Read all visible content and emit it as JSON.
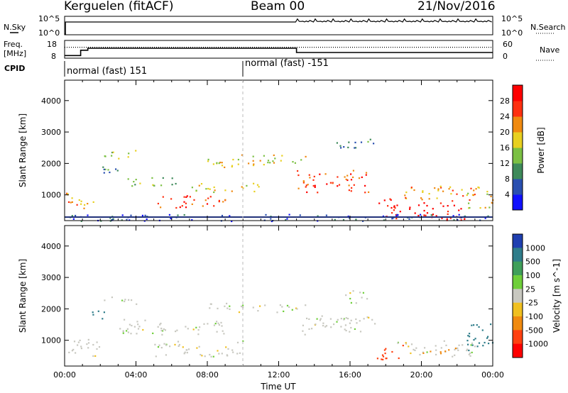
{
  "header": {
    "station": "Kerguelen (fitACF)",
    "beam": "Beam 00",
    "date": "21/Nov/2016"
  },
  "params": {
    "nsky_label": "N.Sky",
    "nsearch_label": "N.Search",
    "freq_label_1": "Freq.",
    "freq_label_2": "[MHz]",
    "nave_label": "Nave",
    "cpid_label": "CPID",
    "nsky_ticks": [
      "10^5",
      "10^0"
    ],
    "nsearch_ticks": [
      "10^5",
      "10^0"
    ],
    "freq_ticks": [
      "18",
      "8"
    ],
    "nave_ticks": [
      "60",
      "0"
    ],
    "cpid_segments": [
      {
        "label": "normal (fast) 151",
        "start_h": 0,
        "end_h": 10
      },
      {
        "label": "normal (fast) -151",
        "start_h": 10,
        "end_h": 24
      }
    ],
    "freq_trace_mhz": [
      [
        0,
        9.5
      ],
      [
        0.9,
        9.5
      ],
      [
        0.9,
        12.5
      ],
      [
        1.3,
        12.5
      ],
      [
        1.3,
        13.6
      ],
      [
        13,
        13.6
      ],
      [
        13,
        11.2
      ],
      [
        24,
        11.2
      ]
    ],
    "nave_trace": [
      [
        0,
        37
      ],
      [
        24,
        37
      ]
    ]
  },
  "chart_data": [
    {
      "type": "heatmap",
      "title": "",
      "xlabel": "",
      "ylabel": "Slant Range [km]",
      "x_ticks": [
        "00:00",
        "04:00",
        "08:00",
        "12:00",
        "16:00",
        "20:00",
        "00:00"
      ],
      "xlim_hours": [
        0,
        24
      ],
      "y_ticks": [
        "1000",
        "2000",
        "3000",
        "4000"
      ],
      "ylim_km": [
        180,
        4650
      ],
      "colorbar_label": "Power [dB]",
      "colorbar_ticks": [
        "4",
        "8",
        "12",
        "16",
        "20",
        "24",
        "28"
      ],
      "colorbar_colors": [
        "#1010ff",
        "#2a4fb0",
        "#3e8a5a",
        "#7bc043",
        "#e8d020",
        "#f08a10",
        "#ff3010",
        "#ff0000"
      ],
      "scatter_blobs": [
        {
          "t": [
            0.0,
            1.6
          ],
          "r": [
            550,
            1100
          ],
          "level": 20
        },
        {
          "t": [
            1.5,
            3.0
          ],
          "r": [
            1700,
            2000
          ],
          "level": 8
        },
        {
          "t": [
            2.2,
            4.0
          ],
          "r": [
            2150,
            2450
          ],
          "level": 12
        },
        {
          "t": [
            3.5,
            6.5
          ],
          "r": [
            1300,
            1600
          ],
          "level": 12
        },
        {
          "t": [
            5.0,
            9.0
          ],
          "r": [
            600,
            1000
          ],
          "level": 24
        },
        {
          "t": [
            7.0,
            11.0
          ],
          "r": [
            1100,
            1400
          ],
          "level": 16
        },
        {
          "t": [
            8.0,
            13.5
          ],
          "r": [
            1900,
            2300
          ],
          "level": 16
        },
        {
          "t": [
            13.0,
            17.0
          ],
          "r": [
            1100,
            1800
          ],
          "level": 24
        },
        {
          "t": [
            15.0,
            17.5
          ],
          "r": [
            2500,
            2800
          ],
          "level": 8
        },
        {
          "t": [
            17.5,
            18.5
          ],
          "r": [
            500,
            900
          ],
          "level": 28
        },
        {
          "t": [
            18.0,
            22.5
          ],
          "r": [
            200,
            800
          ],
          "level": 28
        },
        {
          "t": [
            19.0,
            23.0
          ],
          "r": [
            800,
            1300
          ],
          "level": 20
        },
        {
          "t": [
            22.5,
            24.0
          ],
          "r": [
            600,
            1300
          ],
          "level": 16
        },
        {
          "t": [
            0.0,
            24.0
          ],
          "r": [
            180,
            400
          ],
          "level": 4
        }
      ]
    },
    {
      "type": "heatmap",
      "title": "",
      "xlabel": "Time UT",
      "ylabel": "Slant Range [km]",
      "x_ticks": [
        "00:00",
        "04:00",
        "08:00",
        "12:00",
        "16:00",
        "20:00",
        "00:00"
      ],
      "xlim_hours": [
        0,
        24
      ],
      "y_ticks": [
        "1000",
        "2000",
        "3000",
        "4000"
      ],
      "ylim_km": [
        180,
        4650
      ],
      "colorbar_label": "Velocity [m s^-1]",
      "colorbar_ticks": [
        "1000",
        "500",
        "100",
        "25",
        "-25",
        "-100",
        "-500",
        "-1000"
      ],
      "colorbar_colors": [
        "#1f3fb0",
        "#2f7d8a",
        "#3f9f5a",
        "#6fcf3a",
        "#c8c8c0",
        "#f0c020",
        "#f08a10",
        "#ff4010",
        "#ff0000"
      ],
      "scatter_blobs": [
        {
          "t": [
            0.0,
            2.0
          ],
          "r": [
            500,
            1100
          ],
          "v": 0
        },
        {
          "t": [
            1.5,
            2.5
          ],
          "r": [
            1700,
            2000
          ],
          "v": 500
        },
        {
          "t": [
            2.0,
            4.0
          ],
          "r": [
            2150,
            2400
          ],
          "v": 0
        },
        {
          "t": [
            3.0,
            9.0
          ],
          "r": [
            1200,
            1700
          ],
          "v": 0
        },
        {
          "t": [
            5.0,
            10.0
          ],
          "r": [
            500,
            1000
          ],
          "v": 0
        },
        {
          "t": [
            8.0,
            13.5
          ],
          "r": [
            1900,
            2200
          ],
          "v": 0
        },
        {
          "t": [
            13.0,
            17.5
          ],
          "r": [
            1200,
            1800
          ],
          "v": 0
        },
        {
          "t": [
            15.5,
            17.0
          ],
          "r": [
            2200,
            2600
          ],
          "v": 0
        },
        {
          "t": [
            17.5,
            19.0
          ],
          "r": [
            400,
            900
          ],
          "v": -500
        },
        {
          "t": [
            18.5,
            23.0
          ],
          "r": [
            500,
            1000
          ],
          "v": 0
        },
        {
          "t": [
            20.0,
            22.0
          ],
          "r": [
            600,
            800
          ],
          "v": -100
        },
        {
          "t": [
            22.5,
            24.0
          ],
          "r": [
            700,
            1600
          ],
          "v": 500
        }
      ]
    }
  ]
}
